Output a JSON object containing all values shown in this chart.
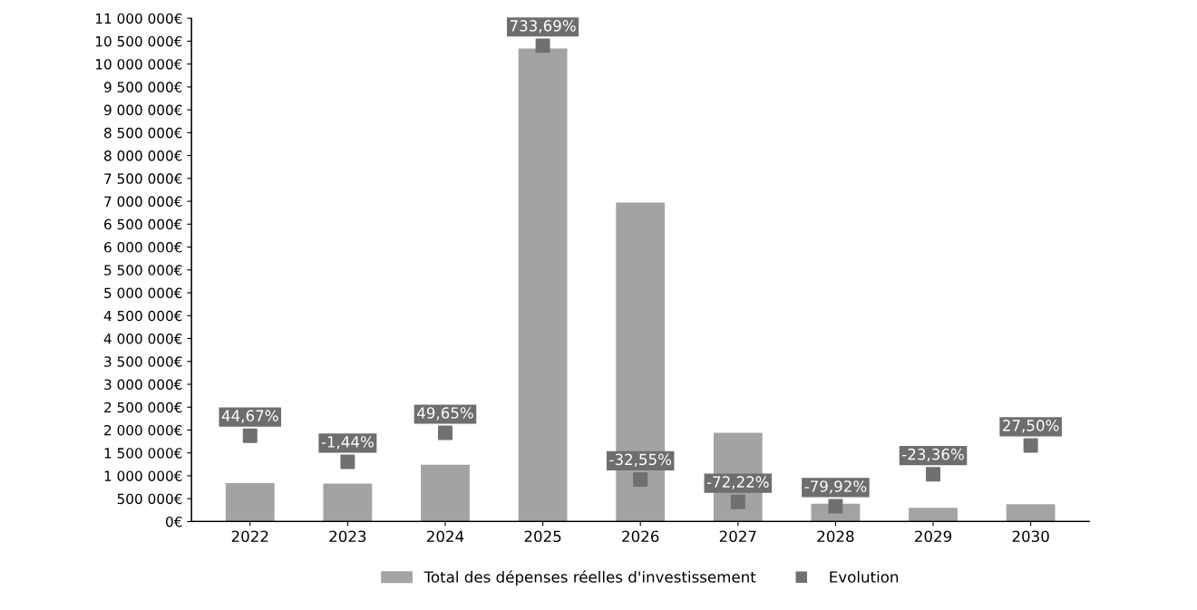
{
  "chart_data": {
    "type": "bar",
    "categories": [
      "2022",
      "2023",
      "2024",
      "2025",
      "2026",
      "2027",
      "2028",
      "2029",
      "2030"
    ],
    "series": [
      {
        "name": "Total des dépenses réelles d'investissement",
        "color": "#a3a3a3",
        "values": [
          840000,
          830000,
          1240000,
          10340000,
          6970000,
          1940000,
          390000,
          300000,
          380000
        ]
      },
      {
        "name": "Evolution",
        "type": "scatter",
        "axis": "y2",
        "marker": "square",
        "color": "#707070",
        "values": [
          44.67,
          -1.44,
          49.65,
          733.69,
          -32.55,
          -72.22,
          -79.92,
          -23.36,
          27.5
        ],
        "value_labels": [
          "44,67%",
          "-1,44%",
          "49,65%",
          "733,69%",
          "-32,55%",
          "-72,22%",
          "-79,92%",
          "-23,36%",
          "27,50%"
        ]
      }
    ],
    "ylim": [
      0,
      11000000
    ],
    "yticks": [
      {
        "value": 0,
        "label": "0€"
      },
      {
        "value": 500000,
        "label": "500 000€"
      },
      {
        "value": 1000000,
        "label": "1 000 000€"
      },
      {
        "value": 1500000,
        "label": "1 500 000€"
      },
      {
        "value": 2000000,
        "label": "2 000 000€"
      },
      {
        "value": 2500000,
        "label": "2 500 000€"
      },
      {
        "value": 3000000,
        "label": "3 000 000€"
      },
      {
        "value": 3500000,
        "label": "3 500 000€"
      },
      {
        "value": 4000000,
        "label": "4 000 000€"
      },
      {
        "value": 4500000,
        "label": "4 500 000€"
      },
      {
        "value": 5000000,
        "label": "5 000 000€"
      },
      {
        "value": 5500000,
        "label": "5 500 000€"
      },
      {
        "value": 6000000,
        "label": "6 000 000€"
      },
      {
        "value": 6500000,
        "label": "6 500 000€"
      },
      {
        "value": 7000000,
        "label": "7 000 000€"
      },
      {
        "value": 7500000,
        "label": "7 500 000€"
      },
      {
        "value": 8000000,
        "label": "8 000 000€"
      },
      {
        "value": 8500000,
        "label": "8 500 000€"
      },
      {
        "value": 9000000,
        "label": "9 000 000€"
      },
      {
        "value": 9500000,
        "label": "9 500 000€"
      },
      {
        "value": 10000000,
        "label": "10 000 000€"
      },
      {
        "value": 10500000,
        "label": "10 500 000€"
      },
      {
        "value": 11000000,
        "label": "11 000 000€"
      }
    ],
    "y2lim": [
      -107,
      782
    ],
    "grid": false,
    "legend": "bottom"
  }
}
